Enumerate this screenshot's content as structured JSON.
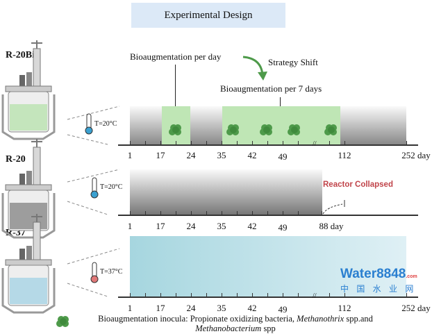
{
  "title": "Experimental Design",
  "reactors": [
    {
      "name": "R-20Bio",
      "temperature": "T=20°C",
      "ticks": [
        "1",
        "17",
        "24",
        "35",
        "42",
        "49",
        "112",
        "252 day"
      ]
    },
    {
      "name": "R-20",
      "temperature": "T=20°C",
      "ticks": [
        "1",
        "17",
        "24",
        "35",
        "42",
        "49",
        "88 day"
      ],
      "status": "Reactor Collapsed"
    },
    {
      "name": "R-37",
      "temperature": "T=37°C",
      "ticks": [
        "1",
        "17",
        "24",
        "35",
        "42",
        "49",
        "112",
        "252 day"
      ]
    }
  ],
  "annotations": {
    "daily": "Bioaugmentation per day",
    "shift": "Strategy Shift",
    "weekly": "Bioaugmentation per 7 days"
  },
  "legend": {
    "prefix": "Bioaugmentation inocula: Propionate oxidizing bacteria, ",
    "genus1": "Methanothrix",
    "mid": " spp.and",
    "genus2": "Methanobacterium",
    "suffix": " spp"
  },
  "watermark": {
    "text": "Water8848",
    "sub": ".com",
    "cn": "中 国 水 业 网"
  },
  "colors": {
    "green": "#4e9a4a",
    "collapse": "#c0444a",
    "cyan": "#a9d8e0"
  }
}
